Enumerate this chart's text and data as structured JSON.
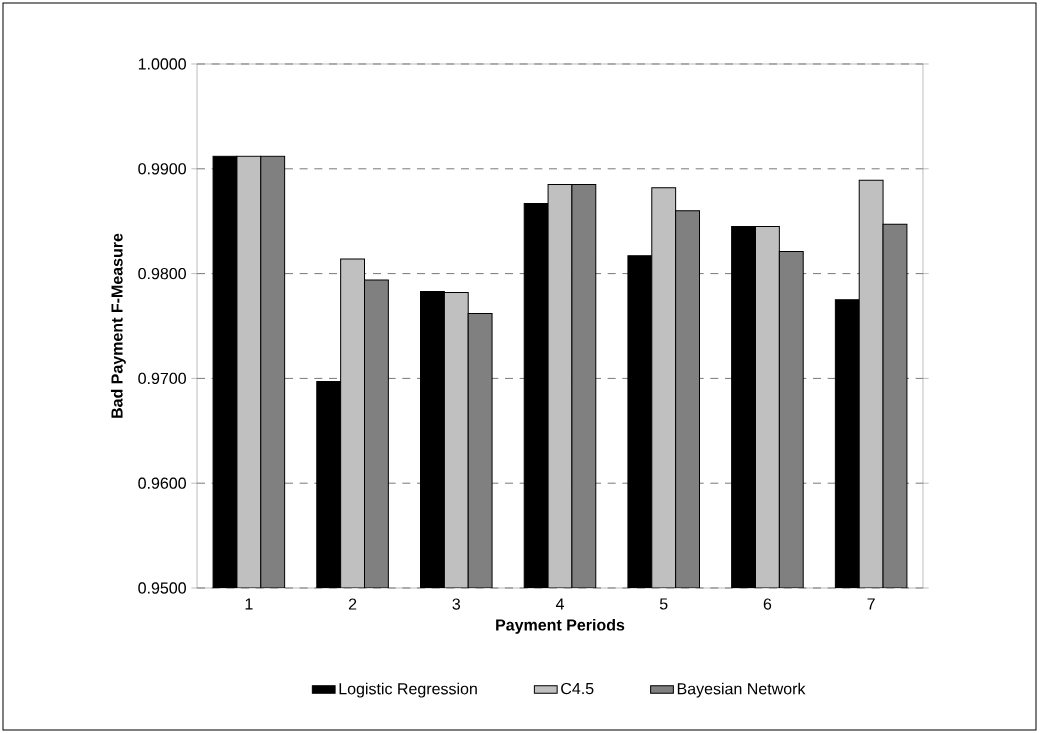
{
  "chart_data": {
    "type": "bar",
    "xlabel": "Payment Periods",
    "ylabel": "Bad Payment F-Measure",
    "categories": [
      "1",
      "2",
      "3",
      "4",
      "5",
      "6",
      "7"
    ],
    "series": [
      {
        "name": "Logistic Regression",
        "color": "#000000",
        "values": [
          0.9912,
          0.9697,
          0.9783,
          0.9867,
          0.9817,
          0.9845,
          0.9775
        ]
      },
      {
        "name": "C4.5",
        "color": "#c0c0c0",
        "values": [
          0.9912,
          0.9814,
          0.9782,
          0.9885,
          0.9882,
          0.9845,
          0.9889
        ]
      },
      {
        "name": "Bayesian Network",
        "color": "#808080",
        "values": [
          0.9912,
          0.9794,
          0.9762,
          0.9885,
          0.986,
          0.9821,
          0.9847
        ]
      }
    ],
    "ylim": [
      0.95,
      1.0
    ],
    "yticks": [
      {
        "value": 0.95,
        "label": "0.9500"
      },
      {
        "value": 0.96,
        "label": "0.9600"
      },
      {
        "value": 0.97,
        "label": "0.9700"
      },
      {
        "value": 0.98,
        "label": "0.9800"
      },
      {
        "value": 0.99,
        "label": "0.9900"
      },
      {
        "value": 1.0,
        "label": "1.0000"
      }
    ],
    "grid": "y",
    "legend": "bottom"
  }
}
